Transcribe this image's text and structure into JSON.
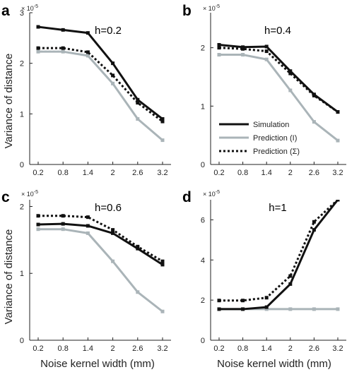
{
  "chart_data": [
    {
      "type": "line",
      "panel_label": "a",
      "title": "h=0.2",
      "ylabel": "Variance of distance",
      "xlabel": "",
      "scale_label": "× 10",
      "scale_exponent": "-5",
      "x": [
        0.2,
        0.8,
        1.4,
        2,
        2.6,
        3.2
      ],
      "x_tick_labels": [
        "0.2",
        "0.8",
        "1.4",
        "2",
        "2.6",
        "3.2"
      ],
      "ylim": [
        0,
        3
      ],
      "y_ticks": [
        0,
        1,
        2,
        3
      ],
      "y_tick_labels": [
        "0",
        "1",
        "2",
        "3"
      ],
      "series": [
        {
          "name": "Simulation",
          "color": "#111111",
          "style": "solid",
          "values": [
            2.72,
            2.66,
            2.6,
            2.0,
            1.28,
            0.9
          ]
        },
        {
          "name": "Prediction (I)",
          "color": "#aab4b8",
          "style": "solid",
          "values": [
            2.23,
            2.23,
            2.15,
            1.6,
            0.9,
            0.48
          ]
        },
        {
          "name": "Prediction (Σ)",
          "color": "#111111",
          "style": "dotted",
          "values": [
            2.3,
            2.3,
            2.22,
            1.76,
            1.22,
            0.85
          ]
        }
      ]
    },
    {
      "type": "line",
      "panel_label": "b",
      "title": "h=0.4",
      "ylabel": "",
      "xlabel": "",
      "scale_label": "× 10",
      "scale_exponent": "-5",
      "x": [
        0.2,
        0.8,
        1.4,
        2,
        2.6,
        3.2
      ],
      "x_tick_labels": [
        "0.2",
        "0.8",
        "1.4",
        "2",
        "2.6",
        "3.2"
      ],
      "ylim": [
        0,
        2.6
      ],
      "y_ticks": [
        0,
        1,
        2
      ],
      "y_tick_labels": [
        "0",
        "1",
        "2"
      ],
      "legend": {
        "position": "center-right",
        "entries": [
          "Simulation",
          "Prediction (I)",
          "Prediction (Σ)"
        ]
      },
      "series": [
        {
          "name": "Simulation",
          "color": "#111111",
          "style": "solid",
          "values": [
            2.05,
            2.01,
            2.02,
            1.6,
            1.2,
            0.9
          ]
        },
        {
          "name": "Prediction (I)",
          "color": "#aab4b8",
          "style": "solid",
          "values": [
            1.88,
            1.88,
            1.8,
            1.27,
            0.73,
            0.41
          ]
        },
        {
          "name": "Prediction (Σ)",
          "color": "#111111",
          "style": "dotted",
          "values": [
            2.0,
            1.98,
            1.94,
            1.56,
            1.18,
            0.9
          ]
        }
      ]
    },
    {
      "type": "line",
      "panel_label": "c",
      "title": "h=0.6",
      "ylabel": "Variance of distance",
      "xlabel": "Noise kernel width (mm)",
      "scale_label": "× 10",
      "scale_exponent": "-5",
      "x": [
        0.2,
        0.8,
        1.4,
        2,
        2.6,
        3.2
      ],
      "x_tick_labels": [
        "0.2",
        "0.8",
        "1.4",
        "2",
        "2.6",
        "3.2"
      ],
      "ylim": [
        0,
        2.1
      ],
      "y_ticks": [
        0,
        1,
        2
      ],
      "y_tick_labels": [
        "0",
        "1",
        "2"
      ],
      "series": [
        {
          "name": "Simulation",
          "color": "#111111",
          "style": "solid",
          "values": [
            1.73,
            1.74,
            1.71,
            1.6,
            1.37,
            1.13
          ]
        },
        {
          "name": "Prediction (I)",
          "color": "#aab4b8",
          "style": "solid",
          "values": [
            1.66,
            1.66,
            1.6,
            1.18,
            0.72,
            0.43
          ]
        },
        {
          "name": "Prediction (Σ)",
          "color": "#111111",
          "style": "dotted",
          "values": [
            1.86,
            1.86,
            1.84,
            1.65,
            1.4,
            1.18
          ]
        }
      ]
    },
    {
      "type": "line",
      "panel_label": "d",
      "title": "h=1",
      "ylabel": "",
      "xlabel": "Noise kernel width (mm)",
      "scale_label": "× 10",
      "scale_exponent": "-5",
      "x": [
        0.2,
        0.8,
        1.4,
        2,
        2.6,
        3.2
      ],
      "x_tick_labels": [
        "0.2",
        "0.8",
        "1.4",
        "2",
        "2.6",
        "3.2"
      ],
      "ylim": [
        0,
        7
      ],
      "y_ticks": [
        0,
        2,
        4,
        6
      ],
      "y_tick_labels": [
        "0",
        "2",
        "4",
        "6"
      ],
      "series": [
        {
          "name": "Simulation",
          "color": "#111111",
          "style": "solid",
          "values": [
            1.55,
            1.55,
            1.65,
            2.8,
            5.5,
            7.0
          ]
        },
        {
          "name": "Prediction (I)",
          "color": "#aab4b8",
          "style": "solid",
          "values": [
            1.55,
            1.55,
            1.55,
            1.55,
            1.55,
            1.55
          ]
        },
        {
          "name": "Prediction (Σ)",
          "color": "#111111",
          "style": "dotted",
          "values": [
            1.98,
            1.98,
            2.12,
            3.2,
            5.9,
            7.0
          ]
        }
      ]
    }
  ]
}
